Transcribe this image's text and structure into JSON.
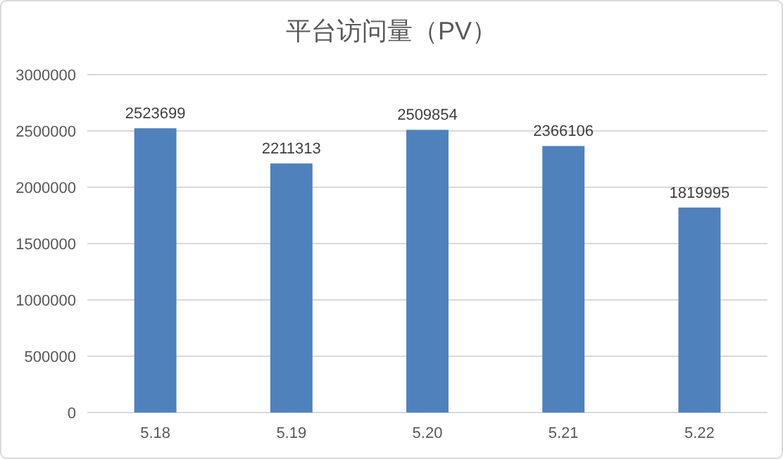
{
  "chart_data": {
    "type": "bar",
    "title": "平台访问量（PV）",
    "categories": [
      "5.18",
      "5.19",
      "5.20",
      "5.21",
      "5.22"
    ],
    "values": [
      2523699,
      2211313,
      2509854,
      2366106,
      1819995
    ],
    "color": "#4f81bd",
    "ylim": [
      0,
      3000000
    ],
    "yticks": [
      0,
      500000,
      1000000,
      1500000,
      2000000,
      2500000,
      3000000
    ],
    "grid": "y",
    "data_labels": true
  }
}
